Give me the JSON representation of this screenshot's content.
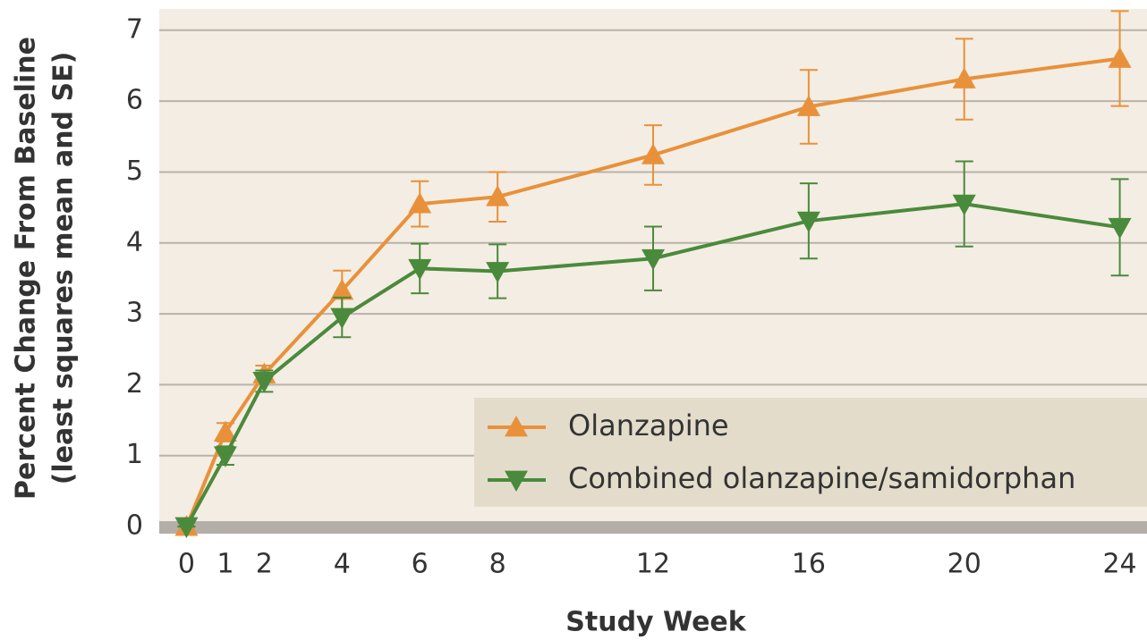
{
  "chart_data": {
    "type": "line",
    "x_label": "Study Week",
    "y_label": [
      "Percent Change From Baseline",
      "(least squares mean and SE)"
    ],
    "x": [
      0,
      1,
      2,
      4,
      6,
      8,
      12,
      16,
      20,
      24
    ],
    "series": [
      {
        "name": "Olanzapine",
        "color": "#e8913a",
        "marker": "triangle-up",
        "values": [
          0,
          1.33,
          2.15,
          3.33,
          4.55,
          4.65,
          5.24,
          5.92,
          6.31,
          6.6
        ],
        "errors": [
          0,
          0.13,
          0.12,
          0.28,
          0.32,
          0.35,
          0.42,
          0.52,
          0.57,
          0.67
        ]
      },
      {
        "name": "Combined olanzapine/samidorphan",
        "color": "#4a8a3c",
        "marker": "triangle-down",
        "values": [
          0,
          1.0,
          2.05,
          2.95,
          3.64,
          3.6,
          3.78,
          4.31,
          4.55,
          4.22
        ],
        "errors": [
          0,
          0.13,
          0.15,
          0.28,
          0.35,
          0.38,
          0.45,
          0.53,
          0.6,
          0.68
        ]
      }
    ],
    "xlim": [
      -0.7,
      24.7
    ],
    "xticks": [
      0,
      1,
      2,
      4,
      6,
      8,
      12,
      16,
      20,
      24
    ],
    "ylim": [
      -0.1,
      7.3
    ],
    "yticks": [
      0,
      1,
      2,
      3,
      4,
      5,
      6,
      7
    ],
    "grid": true,
    "legend": "lower right"
  }
}
